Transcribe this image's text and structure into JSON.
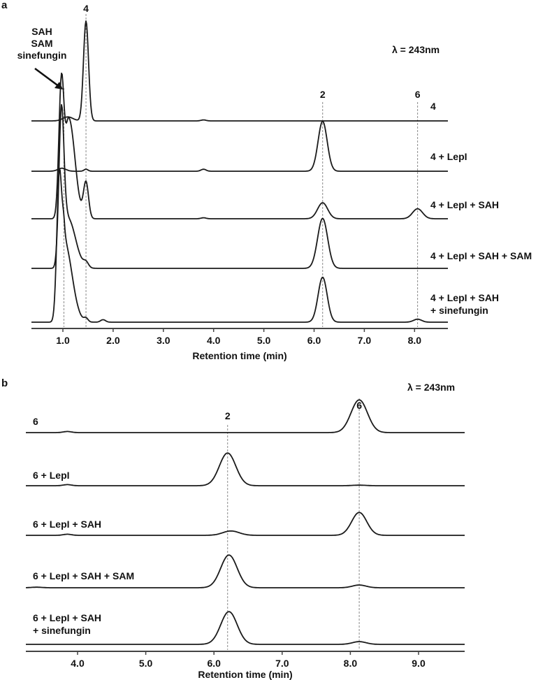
{
  "chart_data": [
    {
      "panel": "a",
      "type": "line",
      "title": "",
      "annotation_wavelength": "λ = 243nm",
      "xlabel": "Retention time (min)",
      "ylabel": "",
      "xlim": [
        0.25,
        8.55
      ],
      "xticks": [
        1.0,
        2.0,
        3.0,
        4.0,
        5.0,
        6.0,
        7.0,
        8.0
      ],
      "xtick_labels": [
        "1.0",
        "2.0",
        "3.0",
        "4.0",
        "5.0",
        "6.0",
        "7.0",
        "8.0"
      ],
      "grid": false,
      "legend": "trace labels at right",
      "marker_lines": [
        {
          "x": 1.02,
          "label": "SAH\nSAM\nsinefungin",
          "arrow": true
        },
        {
          "x": 1.46,
          "label": "4"
        },
        {
          "x": 6.17,
          "label": "2"
        },
        {
          "x": 8.06,
          "label": "6"
        }
      ],
      "series": [
        {
          "name": "4",
          "label_lines": [
            "4"
          ],
          "peaks": [
            {
              "rt": 1.1,
              "height": 0.04,
              "width": 0.1
            },
            {
              "rt": 1.46,
              "height": 1.0,
              "width": 0.05
            },
            {
              "rt": 3.8,
              "height": 0.01,
              "width": 0.05
            }
          ]
        },
        {
          "name": "4 + LepI",
          "label_lines": [
            "4 + LepI"
          ],
          "peaks": [
            {
              "rt": 0.98,
              "height": 0.03,
              "width": 0.08
            },
            {
              "rt": 1.46,
              "height": 0.02,
              "width": 0.04
            },
            {
              "rt": 3.8,
              "height": 0.02,
              "width": 0.05
            },
            {
              "rt": 6.17,
              "height": 0.5,
              "width": 0.09
            }
          ]
        },
        {
          "name": "4 + LepI + SAH",
          "label_lines": [
            "4 + LepI + SAH"
          ],
          "peaks": [
            {
              "rt": 0.97,
              "height": 1.35,
              "width": 0.05
            },
            {
              "rt": 1.12,
              "height": 1.0,
              "width": 0.07,
              "tail": 0.12
            },
            {
              "rt": 1.46,
              "height": 0.36,
              "width": 0.05
            },
            {
              "rt": 3.8,
              "height": 0.01,
              "width": 0.05
            },
            {
              "rt": 6.17,
              "height": 0.16,
              "width": 0.1
            },
            {
              "rt": 8.06,
              "height": 0.1,
              "width": 0.1
            }
          ]
        },
        {
          "name": "4 + LepI + SAH + SAM",
          "label_lines": [
            "4 + LepI + SAH + SAM"
          ],
          "peaks": [
            {
              "rt": 0.97,
              "height": 1.5,
              "width": 0.05
            },
            {
              "rt": 1.1,
              "height": 0.5,
              "width": 0.08,
              "tail": 0.15
            },
            {
              "rt": 1.46,
              "height": 0.05,
              "width": 0.05
            },
            {
              "rt": 6.17,
              "height": 0.5,
              "width": 0.1
            }
          ]
        },
        {
          "name": "4 + LepI + SAH + sinefungin",
          "label_lines": [
            "4 + LepI + SAH",
            "+ sinefungin"
          ],
          "peaks": [
            {
              "rt": 0.93,
              "height": 1.5,
              "width": 0.05
            },
            {
              "rt": 1.03,
              "height": 0.8,
              "width": 0.04,
              "tail": 0.15
            },
            {
              "rt": 1.46,
              "height": 0.035,
              "width": 0.04
            },
            {
              "rt": 1.8,
              "height": 0.025,
              "width": 0.05
            },
            {
              "rt": 6.17,
              "height": 0.45,
              "width": 0.09
            },
            {
              "rt": 8.06,
              "height": 0.03,
              "width": 0.08
            }
          ]
        }
      ]
    },
    {
      "panel": "b",
      "type": "line",
      "title": "",
      "annotation_wavelength": "λ = 243nm",
      "xlabel": "Retention time (min)",
      "ylabel": "",
      "xlim": [
        3.25,
        9.65
      ],
      "xticks": [
        4.0,
        5.0,
        6.0,
        7.0,
        8.0,
        9.0
      ],
      "xtick_labels": [
        "4.0",
        "5.0",
        "6.0",
        "7.0",
        "8.0",
        "9.0"
      ],
      "grid": false,
      "legend": "trace labels at left",
      "marker_lines": [
        {
          "x": 6.2,
          "label": "2"
        },
        {
          "x": 8.13,
          "label": "6"
        }
      ],
      "series": [
        {
          "name": "6",
          "label_lines": [
            "6"
          ],
          "peaks": [
            {
              "rt": 3.85,
              "height": 0.02,
              "width": 0.06
            },
            {
              "rt": 8.13,
              "height": 0.6,
              "width": 0.12
            }
          ]
        },
        {
          "name": "6 + LepI",
          "label_lines": [
            "6 + LepI"
          ],
          "peaks": [
            {
              "rt": 3.85,
              "height": 0.02,
              "width": 0.06
            },
            {
              "rt": 6.2,
              "height": 0.6,
              "width": 0.12
            },
            {
              "rt": 8.13,
              "height": 0.01,
              "width": 0.1
            }
          ]
        },
        {
          "name": "6 + LepI + SAH",
          "label_lines": [
            "6 + LepI + SAH"
          ],
          "peaks": [
            {
              "rt": 3.85,
              "height": 0.02,
              "width": 0.06
            },
            {
              "rt": 6.25,
              "height": 0.08,
              "width": 0.12
            },
            {
              "rt": 8.13,
              "height": 0.42,
              "width": 0.11
            }
          ]
        },
        {
          "name": "6 + LepI + SAH + SAM",
          "label_lines": [
            "6 + LepI + SAH + SAM"
          ],
          "peaks": [
            {
              "rt": 3.4,
              "height": 0.01,
              "width": 0.08
            },
            {
              "rt": 6.22,
              "height": 0.6,
              "width": 0.12
            },
            {
              "rt": 8.13,
              "height": 0.05,
              "width": 0.1
            }
          ]
        },
        {
          "name": "6 + LepI + SAH + sinefungin",
          "label_lines": [
            "6 + LepI + SAH",
            "+ sinefungin"
          ],
          "peaks": [
            {
              "rt": 6.22,
              "height": 0.6,
              "width": 0.12
            },
            {
              "rt": 8.13,
              "height": 0.05,
              "width": 0.1
            }
          ]
        }
      ]
    }
  ],
  "panels": {
    "a": {
      "letter": "a",
      "arrow_label": [
        "SAH",
        "SAM",
        "sinefungin"
      ]
    },
    "b": {
      "letter": "b"
    }
  }
}
